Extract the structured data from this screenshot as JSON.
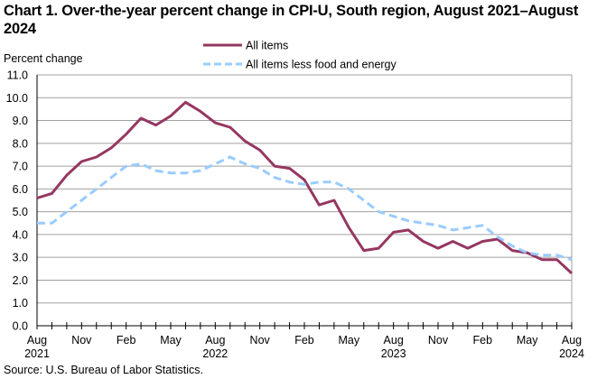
{
  "chart_data": {
    "type": "line",
    "title": "Chart 1. Over-the-year percent change in CPI-U, South region, August 2021–August 2024",
    "ylabel": "Percent change",
    "xlabel": "",
    "ylim": [
      0,
      11
    ],
    "yticks": [
      "0.0",
      "1.0",
      "2.0",
      "3.0",
      "4.0",
      "5.0",
      "6.0",
      "7.0",
      "8.0",
      "9.0",
      "10.0",
      "11.0"
    ],
    "grid": true,
    "legend_position": "top-center",
    "x": [
      "Aug 2021",
      "Sep 2021",
      "Oct 2021",
      "Nov 2021",
      "Dec 2021",
      "Jan 2022",
      "Feb 2022",
      "Mar 2022",
      "Apr 2022",
      "May 2022",
      "Jun 2022",
      "Jul 2022",
      "Aug 2022",
      "Sep 2022",
      "Oct 2022",
      "Nov 2022",
      "Dec 2022",
      "Jan 2023",
      "Feb 2023",
      "Mar 2023",
      "Apr 2023",
      "May 2023",
      "Jun 2023",
      "Jul 2023",
      "Aug 2023",
      "Sep 2023",
      "Oct 2023",
      "Nov 2023",
      "Dec 2023",
      "Jan 2024",
      "Feb 2024",
      "Mar 2024",
      "Apr 2024",
      "May 2024",
      "Jun 2024",
      "Jul 2024",
      "Aug 2024"
    ],
    "xtick_labels": [
      {
        "index": 0,
        "month": "Aug",
        "year": "2021"
      },
      {
        "index": 3,
        "month": "Nov",
        "year": ""
      },
      {
        "index": 6,
        "month": "Feb",
        "year": ""
      },
      {
        "index": 9,
        "month": "May",
        "year": ""
      },
      {
        "index": 12,
        "month": "Aug",
        "year": "2022"
      },
      {
        "index": 15,
        "month": "Nov",
        "year": ""
      },
      {
        "index": 18,
        "month": "Feb",
        "year": ""
      },
      {
        "index": 21,
        "month": "May",
        "year": ""
      },
      {
        "index": 24,
        "month": "Aug",
        "year": "2023"
      },
      {
        "index": 27,
        "month": "Nov",
        "year": ""
      },
      {
        "index": 30,
        "month": "Feb",
        "year": ""
      },
      {
        "index": 33,
        "month": "May",
        "year": ""
      },
      {
        "index": 36,
        "month": "Aug",
        "year": "2024"
      }
    ],
    "series": [
      {
        "name": "All items",
        "color": "#953761",
        "style": "solid",
        "values": [
          5.6,
          5.8,
          6.6,
          7.2,
          7.4,
          7.8,
          8.4,
          9.1,
          8.8,
          9.2,
          9.8,
          9.4,
          8.9,
          8.7,
          8.1,
          7.7,
          7.0,
          6.9,
          6.4,
          5.3,
          5.5,
          4.3,
          3.3,
          3.4,
          4.1,
          4.2,
          3.7,
          3.4,
          3.7,
          3.4,
          3.7,
          3.8,
          3.3,
          3.2,
          2.9,
          2.9,
          2.3
        ]
      },
      {
        "name": "All items less food and energy",
        "color": "#99ccff",
        "style": "dashed",
        "values": [
          4.5,
          4.5,
          5.0,
          5.5,
          6.0,
          6.5,
          7.0,
          7.1,
          6.8,
          6.7,
          6.7,
          6.8,
          7.1,
          7.4,
          7.1,
          6.9,
          6.5,
          6.3,
          6.2,
          6.3,
          6.3,
          6.0,
          5.5,
          5.0,
          4.8,
          4.6,
          4.5,
          4.4,
          4.2,
          4.3,
          4.4,
          3.9,
          3.5,
          3.2,
          3.1,
          3.1,
          2.9
        ]
      }
    ]
  },
  "source": "Source: U.S. Bureau of Labor Statistics."
}
